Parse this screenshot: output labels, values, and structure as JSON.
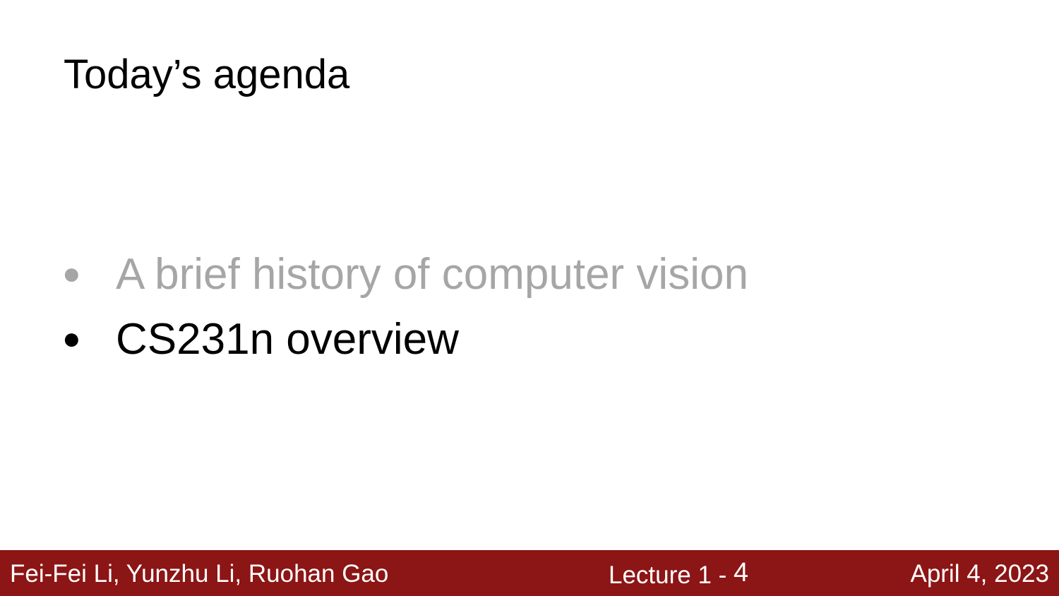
{
  "slide": {
    "title": "Today’s agenda",
    "items": [
      {
        "bullet": "●",
        "text": "A brief history of computer vision",
        "state": "dim"
      },
      {
        "bullet": "●",
        "text": "CS231n overview",
        "state": "active"
      }
    ]
  },
  "footer": {
    "authors": "Fei-Fei Li, Yunzhu Li, Ruohan Gao",
    "lecture_prefix": "Lecture 1 - ",
    "page": "4",
    "date": "April 4, 2023"
  },
  "colors": {
    "footer_background": "#8c1515",
    "dim_text": "#a6a6a6",
    "active_text": "#000000"
  }
}
